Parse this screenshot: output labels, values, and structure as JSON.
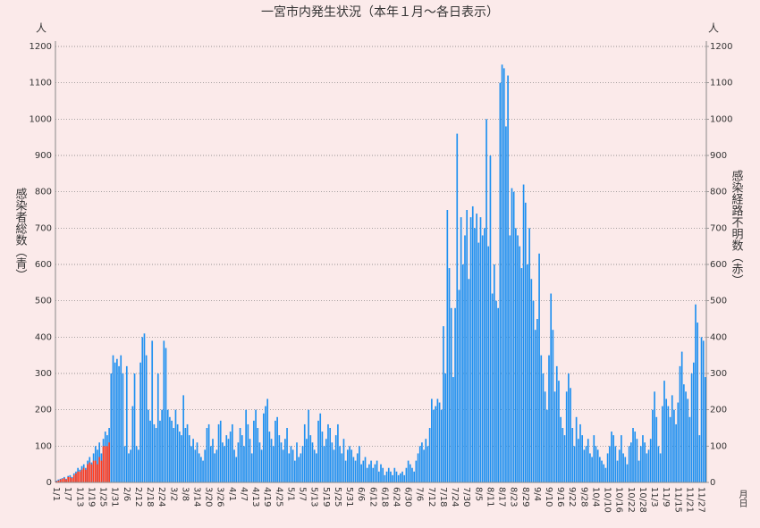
{
  "chart_data": {
    "type": "bar",
    "title": "一宮市内発生状況（本年１月～各日表示）",
    "y_label": "感染者総数（青）",
    "y2_label": "感染経路不明数（赤）",
    "y_unit": "人",
    "y2_unit": "人",
    "x_label": "月日",
    "grid": true,
    "ylim": [
      0,
      1200
    ],
    "yticks": [
      0,
      100,
      200,
      300,
      400,
      500,
      600,
      700,
      800,
      900,
      1000,
      1100,
      1200
    ],
    "y2lim": [
      0,
      1200
    ],
    "y2ticks": [
      0,
      100,
      200,
      300,
      400,
      500,
      600,
      700,
      800,
      900,
      1000,
      1100,
      1200
    ],
    "categories": [
      "1/1",
      null,
      null,
      null,
      null,
      null,
      "1/7",
      null,
      null,
      null,
      null,
      null,
      "1/13",
      null,
      null,
      null,
      null,
      null,
      "1/19",
      null,
      null,
      null,
      null,
      null,
      "1/25",
      null,
      null,
      null,
      null,
      null,
      "1/31",
      null,
      null,
      null,
      null,
      null,
      "2/6",
      null,
      null,
      null,
      null,
      null,
      "2/12",
      null,
      null,
      null,
      null,
      null,
      "2/18",
      null,
      null,
      null,
      null,
      null,
      "2/24",
      null,
      null,
      null,
      null,
      null,
      "3/2",
      null,
      null,
      null,
      null,
      null,
      "3/8",
      null,
      null,
      null,
      null,
      null,
      "3/14",
      null,
      null,
      null,
      null,
      null,
      "3/20",
      null,
      null,
      null,
      null,
      null,
      "3/26",
      null,
      null,
      null,
      null,
      null,
      "4/1",
      null,
      null,
      null,
      null,
      null,
      "4/7",
      null,
      null,
      null,
      null,
      null,
      "4/13",
      null,
      null,
      null,
      null,
      null,
      "4/19",
      null,
      null,
      null,
      null,
      null,
      "4/25",
      null,
      null,
      null,
      null,
      null,
      "5/1",
      null,
      null,
      null,
      null,
      null,
      "5/7",
      null,
      null,
      null,
      null,
      null,
      "5/13",
      null,
      null,
      null,
      null,
      null,
      "5/19",
      null,
      null,
      null,
      null,
      null,
      "5/25",
      null,
      null,
      null,
      null,
      null,
      "5/31",
      null,
      null,
      null,
      null,
      null,
      "6/6",
      null,
      null,
      null,
      null,
      null,
      "6/12",
      null,
      null,
      null,
      null,
      null,
      "6/18",
      null,
      null,
      null,
      null,
      null,
      "6/24",
      null,
      null,
      null,
      null,
      null,
      "6/30",
      null,
      null,
      null,
      null,
      null,
      "7/6",
      null,
      null,
      null,
      null,
      null,
      "7/12",
      null,
      null,
      null,
      null,
      null,
      "7/18",
      null,
      null,
      null,
      null,
      null,
      "7/24",
      null,
      null,
      null,
      null,
      null,
      "7/30",
      null,
      null,
      null,
      null,
      null,
      "8/5",
      null,
      null,
      null,
      null,
      null,
      "8/11",
      null,
      null,
      null,
      null,
      null,
      "8/17",
      null,
      null,
      null,
      null,
      null,
      "8/23",
      null,
      null,
      null,
      null,
      null,
      "8/29",
      null,
      null,
      null,
      null,
      null,
      "9/4",
      null,
      null,
      null,
      null,
      null,
      "9/10",
      null,
      null,
      null,
      null,
      null,
      "9/16",
      null,
      null,
      null,
      null,
      null,
      "9/22",
      null,
      null,
      null,
      null,
      null,
      "9/28",
      null,
      null,
      null,
      null,
      null,
      "10/4",
      null,
      null,
      null,
      null,
      null,
      "10/10",
      null,
      null,
      null,
      null,
      null,
      "10/16",
      null,
      null,
      null,
      null,
      null,
      "10/22",
      null,
      null,
      null,
      null,
      null,
      "10/28",
      null,
      null,
      null,
      null,
      null,
      "11/3",
      null,
      null,
      null,
      null,
      null,
      "11/9",
      null,
      null,
      null,
      null,
      null,
      "11/15",
      null,
      null,
      null,
      null,
      null,
      "11/21",
      null,
      null,
      null,
      null,
      null,
      "11/27",
      null,
      null
    ],
    "series": [
      {
        "name": "感染者総数",
        "color": "#1e90f0",
        "axis": "y",
        "values": [
          5,
          8,
          10,
          12,
          15,
          10,
          18,
          20,
          15,
          25,
          30,
          40,
          35,
          45,
          50,
          40,
          60,
          70,
          55,
          80,
          100,
          90,
          110,
          80,
          120,
          140,
          130,
          150,
          300,
          350,
          330,
          340,
          320,
          350,
          300,
          100,
          320,
          80,
          90,
          210,
          300,
          100,
          90,
          330,
          400,
          410,
          350,
          200,
          170,
          390,
          160,
          150,
          300,
          170,
          200,
          390,
          370,
          200,
          180,
          170,
          150,
          200,
          160,
          140,
          130,
          240,
          150,
          160,
          130,
          100,
          120,
          90,
          110,
          80,
          70,
          60,
          90,
          150,
          160,
          100,
          120,
          80,
          90,
          160,
          170,
          110,
          100,
          130,
          120,
          140,
          160,
          90,
          70,
          110,
          150,
          130,
          100,
          200,
          160,
          120,
          80,
          170,
          200,
          150,
          110,
          90,
          190,
          210,
          230,
          140,
          120,
          100,
          170,
          180,
          130,
          110,
          90,
          120,
          150,
          80,
          100,
          90,
          60,
          110,
          70,
          80,
          100,
          160,
          120,
          200,
          130,
          110,
          90,
          80,
          170,
          190,
          140,
          100,
          120,
          160,
          150,
          110,
          90,
          130,
          160,
          100,
          80,
          120,
          60,
          90,
          100,
          90,
          70,
          60,
          80,
          100,
          50,
          60,
          70,
          40,
          50,
          60,
          40,
          50,
          60,
          30,
          50,
          40,
          20,
          30,
          40,
          30,
          20,
          40,
          30,
          20,
          25,
          30,
          20,
          40,
          60,
          50,
          40,
          30,
          60,
          80,
          100,
          110,
          90,
          120,
          100,
          150,
          230,
          200,
          210,
          230,
          220,
          200,
          430,
          300,
          750,
          590,
          480,
          290,
          480,
          960,
          530,
          730,
          600,
          680,
          750,
          560,
          730,
          760,
          700,
          740,
          660,
          730,
          680,
          700,
          1000,
          650,
          900,
          520,
          600,
          500,
          480,
          1100,
          1150,
          1140,
          980,
          1120,
          680,
          810,
          800,
          700,
          680,
          650,
          590,
          820,
          770,
          600,
          700,
          560,
          500,
          420,
          450,
          630,
          350,
          300,
          250,
          200,
          350,
          520,
          420,
          250,
          320,
          280,
          180,
          150,
          130,
          250,
          300,
          260,
          150,
          100,
          180,
          120,
          160,
          130,
          90,
          100,
          120,
          80,
          70,
          130,
          100,
          90,
          70,
          60,
          50,
          40,
          80,
          100,
          140,
          130,
          100,
          60,
          90,
          130,
          80,
          70,
          50,
          100,
          110,
          150,
          140,
          120,
          60,
          100,
          130,
          110,
          80,
          90,
          120,
          200,
          250,
          180,
          100,
          80,
          210,
          280,
          230,
          210,
          180,
          240,
          200,
          160,
          220,
          320,
          360,
          270,
          250,
          230,
          180,
          300,
          330,
          490,
          440,
          130,
          400,
          390,
          290
        ]
      },
      {
        "name": "感染経路不明数",
        "color": "#ff3a1e",
        "axis": "y2",
        "values": [
          3,
          5,
          8,
          10,
          12,
          8,
          15,
          15,
          12,
          20,
          25,
          30,
          30,
          35,
          40,
          35,
          50,
          55,
          50,
          60,
          60,
          50,
          70,
          60,
          100,
          100,
          100,
          110,
          null,
          null,
          null,
          null,
          null,
          null,
          null,
          null,
          null,
          null,
          null,
          null,
          null,
          null,
          null,
          null,
          null,
          null,
          null,
          null,
          null,
          null,
          null,
          null,
          null,
          null,
          null,
          null,
          null,
          null,
          null,
          null,
          null,
          null,
          null,
          null,
          null,
          null,
          null,
          null,
          null,
          null,
          null,
          null,
          null,
          null,
          null,
          null,
          null,
          null,
          null,
          null,
          null,
          null,
          null,
          null,
          null,
          null,
          null,
          null,
          null,
          null,
          null,
          null,
          null,
          null,
          null,
          null,
          null,
          null,
          null,
          null,
          null,
          null,
          null,
          null,
          null,
          null,
          null,
          null,
          null,
          null,
          null,
          null,
          null,
          null,
          null,
          null,
          null,
          null,
          null,
          null,
          null,
          null,
          null,
          null,
          null,
          null,
          null,
          null,
          null,
          null,
          null,
          null,
          null,
          null,
          null,
          null,
          null,
          null,
          null,
          null,
          null,
          null,
          null,
          null,
          null,
          null,
          null,
          null,
          null,
          null,
          null,
          null,
          null,
          null,
          null,
          null,
          null,
          null,
          null,
          null,
          null,
          null,
          null,
          null,
          null,
          null,
          null,
          null,
          null,
          null,
          null,
          null,
          null,
          null,
          null,
          null,
          null,
          null,
          null,
          null,
          null,
          null,
          null,
          null,
          null,
          null,
          null,
          null,
          null,
          null,
          null,
          null,
          null,
          null,
          null,
          null,
          null,
          null,
          null,
          null,
          null,
          null,
          null,
          null,
          null,
          null,
          null,
          null,
          null,
          null,
          null,
          null,
          null,
          null,
          null,
          null,
          null,
          null,
          null,
          null,
          null,
          null,
          null,
          null,
          null,
          null,
          null,
          null,
          null,
          null,
          null,
          null,
          null,
          null,
          null,
          null,
          null,
          null,
          null,
          null,
          null,
          null,
          null,
          null,
          null,
          null,
          null,
          null,
          null,
          null,
          null,
          null,
          null,
          null,
          null,
          null,
          null,
          null,
          null,
          null,
          null,
          null,
          null,
          null,
          null,
          null,
          null,
          null,
          null,
          null,
          null,
          null,
          null,
          null,
          null,
          null,
          null,
          null,
          null,
          null,
          null,
          null,
          null,
          null,
          null,
          null,
          null,
          null,
          null,
          null,
          null,
          null,
          null,
          null,
          null,
          null,
          null,
          null,
          null,
          null,
          null,
          null,
          null,
          null,
          null,
          null,
          null,
          null,
          null,
          null,
          null,
          null,
          null,
          null,
          null,
          null,
          null,
          null,
          null,
          null,
          null,
          null,
          null,
          null,
          null,
          null,
          null,
          null,
          null,
          null,
          null,
          null,
          null
        ]
      }
    ]
  }
}
